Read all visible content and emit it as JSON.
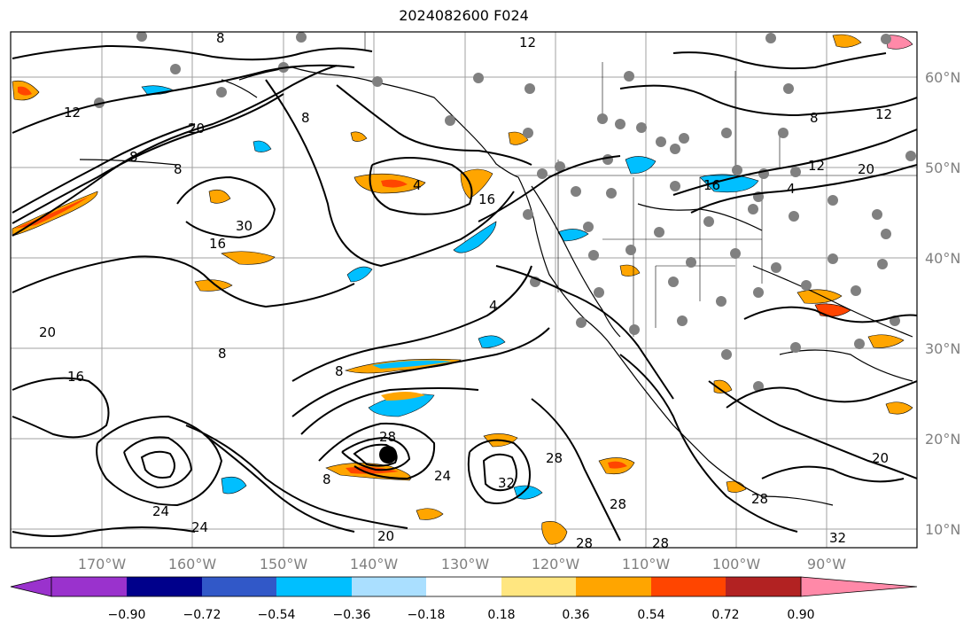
{
  "title": "2024082600 F024",
  "lat_labels": [
    "60°N",
    "50°N",
    "40°N",
    "30°N",
    "20°N",
    "10°N"
  ],
  "lon_labels": [
    "170°W",
    "160°W",
    "150°W",
    "140°W",
    "130°W",
    "120°W",
    "110°W",
    "100°W",
    "90°W"
  ],
  "colorbar": {
    "ticks": [
      "−0.90",
      "−0.72",
      "−0.54",
      "−0.36",
      "−0.18",
      "0.18",
      "0.36",
      "0.54",
      "0.72",
      "0.90"
    ],
    "colors": [
      "#9a32cd",
      "#00008b",
      "#3158c8",
      "#00bfff",
      "#aadfff",
      "#ffffff",
      "#ffe680",
      "#ffa500",
      "#ff4500",
      "#b22222",
      "#ff89a8"
    ]
  },
  "contour_labels": [
    "12",
    "12",
    "12",
    "12",
    "8",
    "8",
    "8",
    "8",
    "8",
    "8",
    "8",
    "8",
    "4",
    "4",
    "4",
    "16",
    "16",
    "16",
    "16",
    "20",
    "20",
    "20",
    "20",
    "20",
    "24",
    "24",
    "24",
    "28",
    "28",
    "28",
    "28",
    "28",
    "28",
    "32",
    "32",
    "30"
  ],
  "colors": {
    "warm": "#ffa500",
    "warm_light": "#ffe680",
    "warm_deep": "#ff4500",
    "cool": "#00bfff",
    "cool_light": "#aadfff",
    "station": "#808080"
  }
}
